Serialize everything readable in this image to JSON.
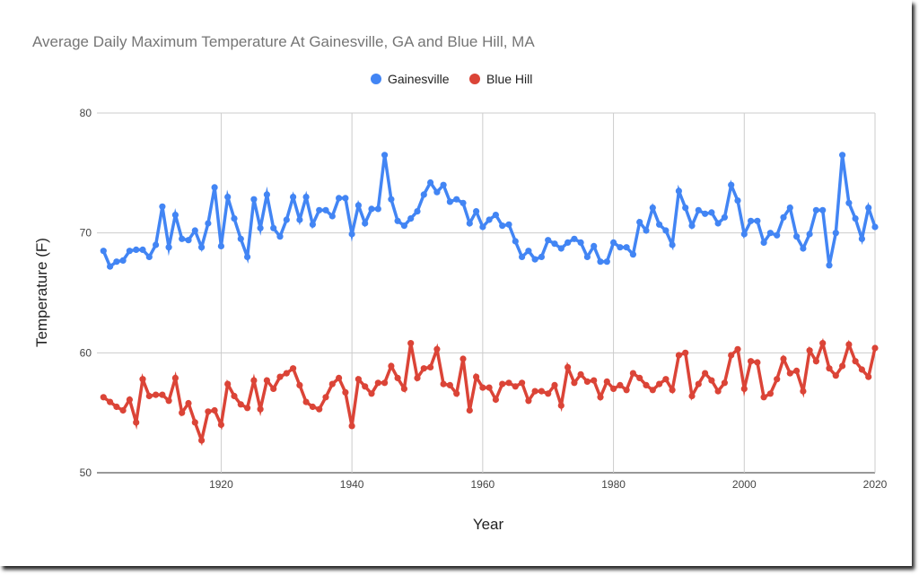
{
  "chart_data": {
    "type": "line",
    "title": "Average Daily Maximum Temperature At Gainesville, GA and Blue Hill, MA",
    "xlabel": "Year",
    "ylabel": "Temperature (F)",
    "xlim": [
      1901,
      2020
    ],
    "ylim": [
      50,
      80
    ],
    "x_ticks": [
      1920,
      1940,
      1960,
      1980,
      2000,
      2020
    ],
    "y_ticks": [
      50,
      60,
      70,
      80
    ],
    "grid": true,
    "legend": "top-center",
    "x": [
      1902,
      1903,
      1904,
      1905,
      1906,
      1907,
      1908,
      1909,
      1910,
      1911,
      1912,
      1913,
      1914,
      1915,
      1916,
      1917,
      1918,
      1919,
      1920,
      1921,
      1922,
      1923,
      1924,
      1925,
      1926,
      1927,
      1928,
      1929,
      1930,
      1931,
      1932,
      1933,
      1934,
      1935,
      1936,
      1937,
      1938,
      1939,
      1940,
      1941,
      1942,
      1943,
      1944,
      1945,
      1946,
      1947,
      1948,
      1949,
      1950,
      1951,
      1952,
      1953,
      1954,
      1955,
      1956,
      1957,
      1958,
      1959,
      1960,
      1961,
      1962,
      1963,
      1964,
      1965,
      1966,
      1967,
      1968,
      1969,
      1970,
      1971,
      1972,
      1973,
      1974,
      1975,
      1976,
      1977,
      1978,
      1979,
      1980,
      1981,
      1982,
      1983,
      1984,
      1985,
      1986,
      1987,
      1988,
      1989,
      1990,
      1991,
      1992,
      1993,
      1994,
      1995,
      1996,
      1997,
      1998,
      1999,
      2000,
      2001,
      2002,
      2003,
      2004,
      2005,
      2006,
      2007,
      2008,
      2009,
      2010,
      2011,
      2012,
      2013,
      2014,
      2015,
      2016,
      2017,
      2018,
      2019,
      2020
    ],
    "series": [
      {
        "name": "Gainesville",
        "color": "#4285f4",
        "values": [
          68.5,
          67.2,
          67.6,
          67.7,
          68.5,
          68.6,
          68.6,
          68.0,
          69.0,
          72.2,
          68.8,
          71.5,
          69.5,
          69.4,
          70.2,
          68.8,
          70.8,
          73.8,
          68.9,
          73.0,
          71.2,
          69.5,
          68.0,
          72.8,
          70.4,
          73.2,
          70.4,
          69.7,
          71.1,
          73.0,
          71.1,
          73.0,
          70.7,
          71.9,
          71.9,
          71.4,
          72.9,
          72.9,
          69.9,
          72.3,
          70.8,
          72.0,
          72.0,
          76.5,
          72.8,
          71.0,
          70.6,
          71.2,
          71.8,
          73.2,
          74.2,
          73.4,
          74.0,
          72.6,
          72.8,
          72.5,
          70.8,
          71.8,
          70.5,
          71.1,
          71.5,
          70.6,
          70.7,
          69.3,
          68.0,
          68.5,
          67.8,
          68.0,
          69.4,
          69.1,
          68.7,
          69.2,
          69.5,
          69.2,
          68.0,
          68.9,
          67.6,
          67.6,
          69.2,
          68.8,
          68.8,
          68.2,
          70.9,
          70.2,
          72.1,
          70.7,
          70.2,
          69.0,
          73.5,
          72.1,
          70.6,
          71.9,
          71.6,
          71.7,
          70.8,
          71.3,
          74.0,
          72.7,
          69.9,
          71.0,
          71.0,
          69.2,
          70.0,
          69.8,
          71.3,
          72.1,
          69.7,
          68.7,
          69.9,
          71.9,
          71.9,
          67.3,
          70.0,
          76.5,
          72.5,
          71.2,
          69.5,
          72.1,
          70.5
        ]
      },
      {
        "name": "Blue Hill",
        "color": "#db4437",
        "values": [
          56.3,
          55.9,
          55.5,
          55.2,
          56.1,
          54.2,
          57.8,
          56.4,
          56.5,
          56.5,
          56.0,
          57.9,
          55.0,
          55.8,
          54.2,
          52.7,
          55.1,
          55.2,
          54.0,
          57.4,
          56.4,
          55.7,
          55.4,
          57.7,
          55.3,
          57.7,
          57.0,
          58.0,
          58.3,
          58.7,
          57.3,
          55.9,
          55.5,
          55.3,
          56.3,
          57.4,
          57.9,
          56.7,
          53.9,
          57.8,
          57.2,
          56.6,
          57.5,
          57.5,
          58.9,
          57.9,
          57.0,
          60.8,
          57.9,
          58.7,
          58.8,
          60.3,
          57.4,
          57.3,
          56.6,
          59.5,
          55.2,
          58.0,
          57.1,
          57.1,
          56.1,
          57.4,
          57.5,
          57.2,
          57.5,
          56.0,
          56.8,
          56.8,
          56.6,
          57.3,
          55.6,
          58.8,
          57.5,
          58.2,
          57.6,
          57.7,
          56.3,
          57.6,
          57.0,
          57.3,
          56.9,
          58.3,
          57.9,
          57.3,
          56.9,
          57.4,
          57.8,
          56.9,
          59.8,
          60.0,
          56.4,
          57.4,
          58.3,
          57.7,
          56.8,
          57.5,
          59.8,
          60.3,
          57.0,
          59.3,
          59.2,
          56.3,
          56.6,
          57.8,
          59.5,
          58.3,
          58.5,
          56.8,
          60.2,
          59.3,
          60.8,
          58.7,
          58.1,
          58.9,
          60.7,
          59.3,
          58.6,
          58.0,
          60.4
        ]
      }
    ]
  }
}
